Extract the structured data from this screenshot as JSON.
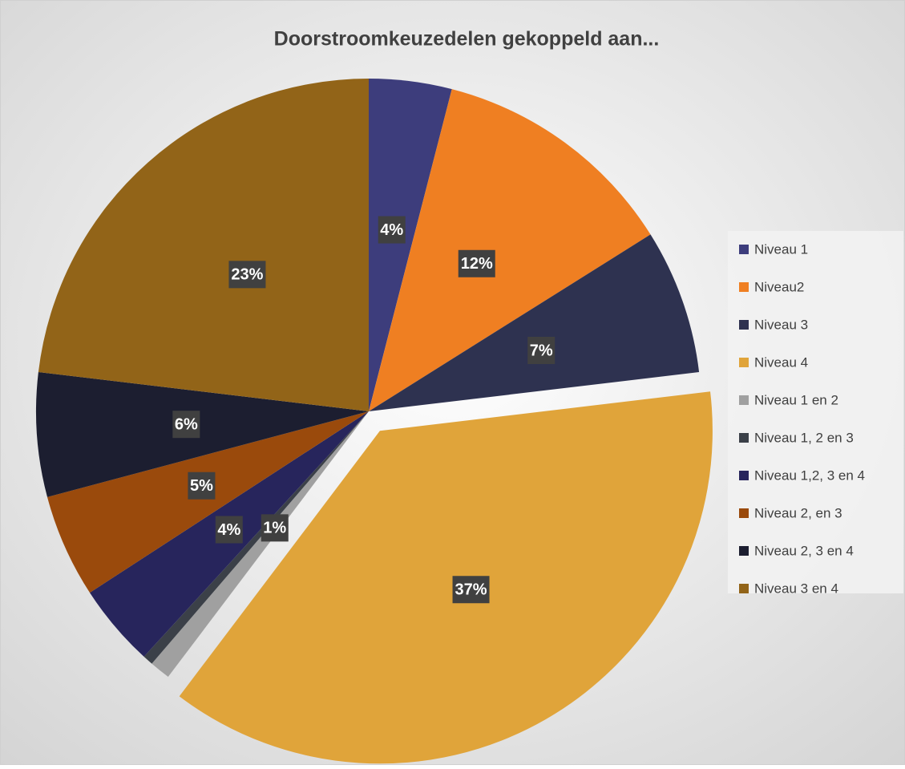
{
  "chart_data": {
    "type": "pie",
    "title": "Doorstroomkeuzedelen gekoppeld aan...",
    "categories": [
      "Niveau 1",
      "Niveau2",
      "Niveau 3",
      "Niveau 4",
      "Niveau 1 en 2",
      "Niveau 1, 2 en 3",
      "Niveau 1,2, 3 en 4",
      "Niveau 2, en 3",
      "Niveau 2, 3 en 4",
      "Niveau 3 en 4"
    ],
    "values": [
      4,
      12,
      7,
      37,
      1,
      0.5,
      4,
      5,
      6,
      23
    ],
    "value_labels": [
      "4%",
      "12%",
      "7%",
      "37%",
      "1%",
      null,
      "4%",
      "5%",
      "6%",
      "23%"
    ],
    "colors": [
      "#3d3d7c",
      "#ef7f22",
      "#2e3250",
      "#e0a43a",
      "#a0a0a0",
      "#3b4048",
      "#27255c",
      "#9a4a0c",
      "#1c1e30",
      "#926418"
    ],
    "exploded": [
      3
    ],
    "legend": "right"
  }
}
